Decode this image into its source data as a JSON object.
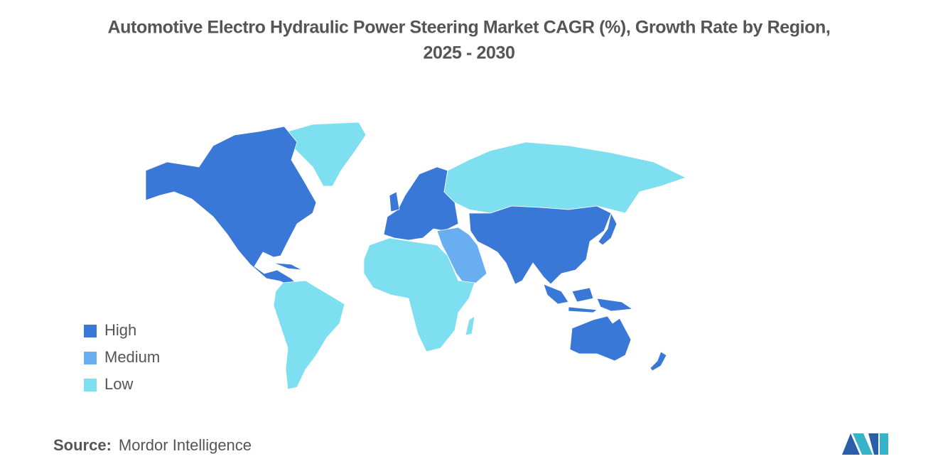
{
  "title_lines": [
    "Automotive Electro Hydraulic Power Steering Market CAGR (%), Growth Rate by Region,",
    "2025 - 2030"
  ],
  "legend": [
    {
      "label": "High",
      "color": "#3a78d8"
    },
    {
      "label": "Medium",
      "color": "#6aaef2"
    },
    {
      "label": "Low",
      "color": "#7ddff0"
    }
  ],
  "source": {
    "label": "Source:",
    "text": "Mordor Intelligence"
  }
}
